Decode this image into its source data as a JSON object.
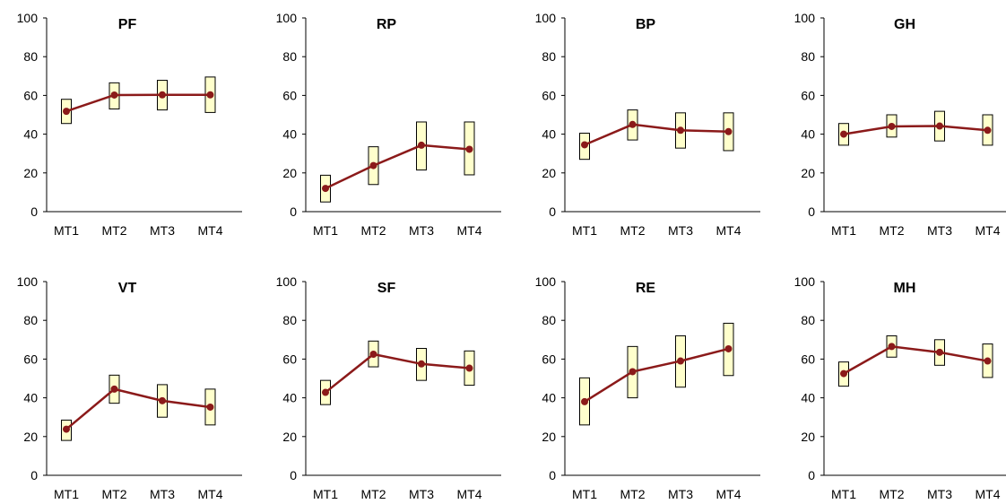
{
  "chart_data": [
    {
      "type": "line",
      "title": "PF",
      "categories": [
        "MT1",
        "MT2",
        "MT3",
        "MT4"
      ],
      "values": [
        51.8,
        60.2,
        60.3,
        60.3
      ],
      "lower": [
        45.5,
        53.0,
        52.5,
        51.2
      ],
      "upper": [
        58.0,
        66.5,
        67.8,
        69.5
      ],
      "ylim": [
        0,
        100
      ],
      "yticks": [
        "0",
        "20",
        "40",
        "60",
        "80",
        "100"
      ],
      "grid": false,
      "colors": {
        "line": "#8B1A1A",
        "box_fill": "#FFFFCC",
        "box_stroke": "#000000"
      }
    },
    {
      "type": "line",
      "title": "RP",
      "categories": [
        "MT1",
        "MT2",
        "MT3",
        "MT4"
      ],
      "values": [
        12.0,
        23.8,
        34.3,
        32.2
      ],
      "lower": [
        5.0,
        14.0,
        21.5,
        19.0
      ],
      "upper": [
        18.8,
        33.5,
        46.3,
        46.3
      ],
      "ylim": [
        0,
        100
      ],
      "yticks": [
        "0",
        "20",
        "40",
        "60",
        "80",
        "100"
      ],
      "grid": false,
      "colors": {
        "line": "#8B1A1A",
        "box_fill": "#FFFFCC",
        "box_stroke": "#000000"
      }
    },
    {
      "type": "line",
      "title": "BP",
      "categories": [
        "MT1",
        "MT2",
        "MT3",
        "MT4"
      ],
      "values": [
        34.5,
        45.0,
        42.0,
        41.3
      ],
      "lower": [
        27.0,
        37.0,
        32.8,
        31.5
      ],
      "upper": [
        40.5,
        52.5,
        51.0,
        51.0
      ],
      "ylim": [
        0,
        100
      ],
      "yticks": [
        "0",
        "20",
        "40",
        "60",
        "80",
        "100"
      ],
      "grid": false,
      "colors": {
        "line": "#8B1A1A",
        "box_fill": "#FFFFCC",
        "box_stroke": "#000000"
      }
    },
    {
      "type": "line",
      "title": "GH",
      "categories": [
        "MT1",
        "MT2",
        "MT3",
        "MT4"
      ],
      "values": [
        40.0,
        44.0,
        44.2,
        42.0
      ],
      "lower": [
        34.3,
        38.5,
        36.5,
        34.3
      ],
      "upper": [
        45.5,
        50.0,
        51.8,
        50.0
      ],
      "ylim": [
        0,
        100
      ],
      "yticks": [
        "0",
        "20",
        "40",
        "60",
        "80",
        "100"
      ],
      "grid": false,
      "colors": {
        "line": "#8B1A1A",
        "box_fill": "#FFFFCC",
        "box_stroke": "#000000"
      }
    },
    {
      "type": "line",
      "title": "VT",
      "categories": [
        "MT1",
        "MT2",
        "MT3",
        "MT4"
      ],
      "values": [
        23.8,
        44.5,
        38.5,
        35.2
      ],
      "lower": [
        18.0,
        37.2,
        30.0,
        26.0
      ],
      "upper": [
        28.5,
        51.7,
        46.8,
        44.5
      ],
      "ylim": [
        0,
        100
      ],
      "yticks": [
        "0",
        "20",
        "40",
        "60",
        "80",
        "100"
      ],
      "grid": false,
      "colors": {
        "line": "#8B1A1A",
        "box_fill": "#FFFFCC",
        "box_stroke": "#000000"
      }
    },
    {
      "type": "line",
      "title": "SF",
      "categories": [
        "MT1",
        "MT2",
        "MT3",
        "MT4"
      ],
      "values": [
        42.8,
        62.5,
        57.5,
        55.3
      ],
      "lower": [
        36.5,
        56.0,
        49.0,
        46.5
      ],
      "upper": [
        49.0,
        69.3,
        65.5,
        64.2
      ],
      "ylim": [
        0,
        100
      ],
      "yticks": [
        "0",
        "20",
        "40",
        "60",
        "80",
        "100"
      ],
      "grid": false,
      "colors": {
        "line": "#8B1A1A",
        "box_fill": "#FFFFCC",
        "box_stroke": "#000000"
      }
    },
    {
      "type": "line",
      "title": "RE",
      "categories": [
        "MT1",
        "MT2",
        "MT3",
        "MT4"
      ],
      "values": [
        38.0,
        53.5,
        59.0,
        65.3
      ],
      "lower": [
        26.0,
        40.0,
        45.5,
        51.5
      ],
      "upper": [
        50.3,
        66.5,
        72.0,
        78.5
      ],
      "ylim": [
        0,
        100
      ],
      "yticks": [
        "0",
        "20",
        "40",
        "60",
        "80",
        "100"
      ],
      "grid": false,
      "colors": {
        "line": "#8B1A1A",
        "box_fill": "#FFFFCC",
        "box_stroke": "#000000"
      }
    },
    {
      "type": "line",
      "title": "MH",
      "categories": [
        "MT1",
        "MT2",
        "MT3",
        "MT4"
      ],
      "values": [
        52.5,
        66.5,
        63.5,
        59.0
      ],
      "lower": [
        46.0,
        61.0,
        56.8,
        50.5
      ],
      "upper": [
        58.5,
        72.0,
        70.0,
        67.8
      ],
      "ylim": [
        0,
        100
      ],
      "yticks": [
        "0",
        "20",
        "40",
        "60",
        "80",
        "100"
      ],
      "grid": false,
      "colors": {
        "line": "#8B1A1A",
        "box_fill": "#FFFFCC",
        "box_stroke": "#000000"
      }
    }
  ]
}
